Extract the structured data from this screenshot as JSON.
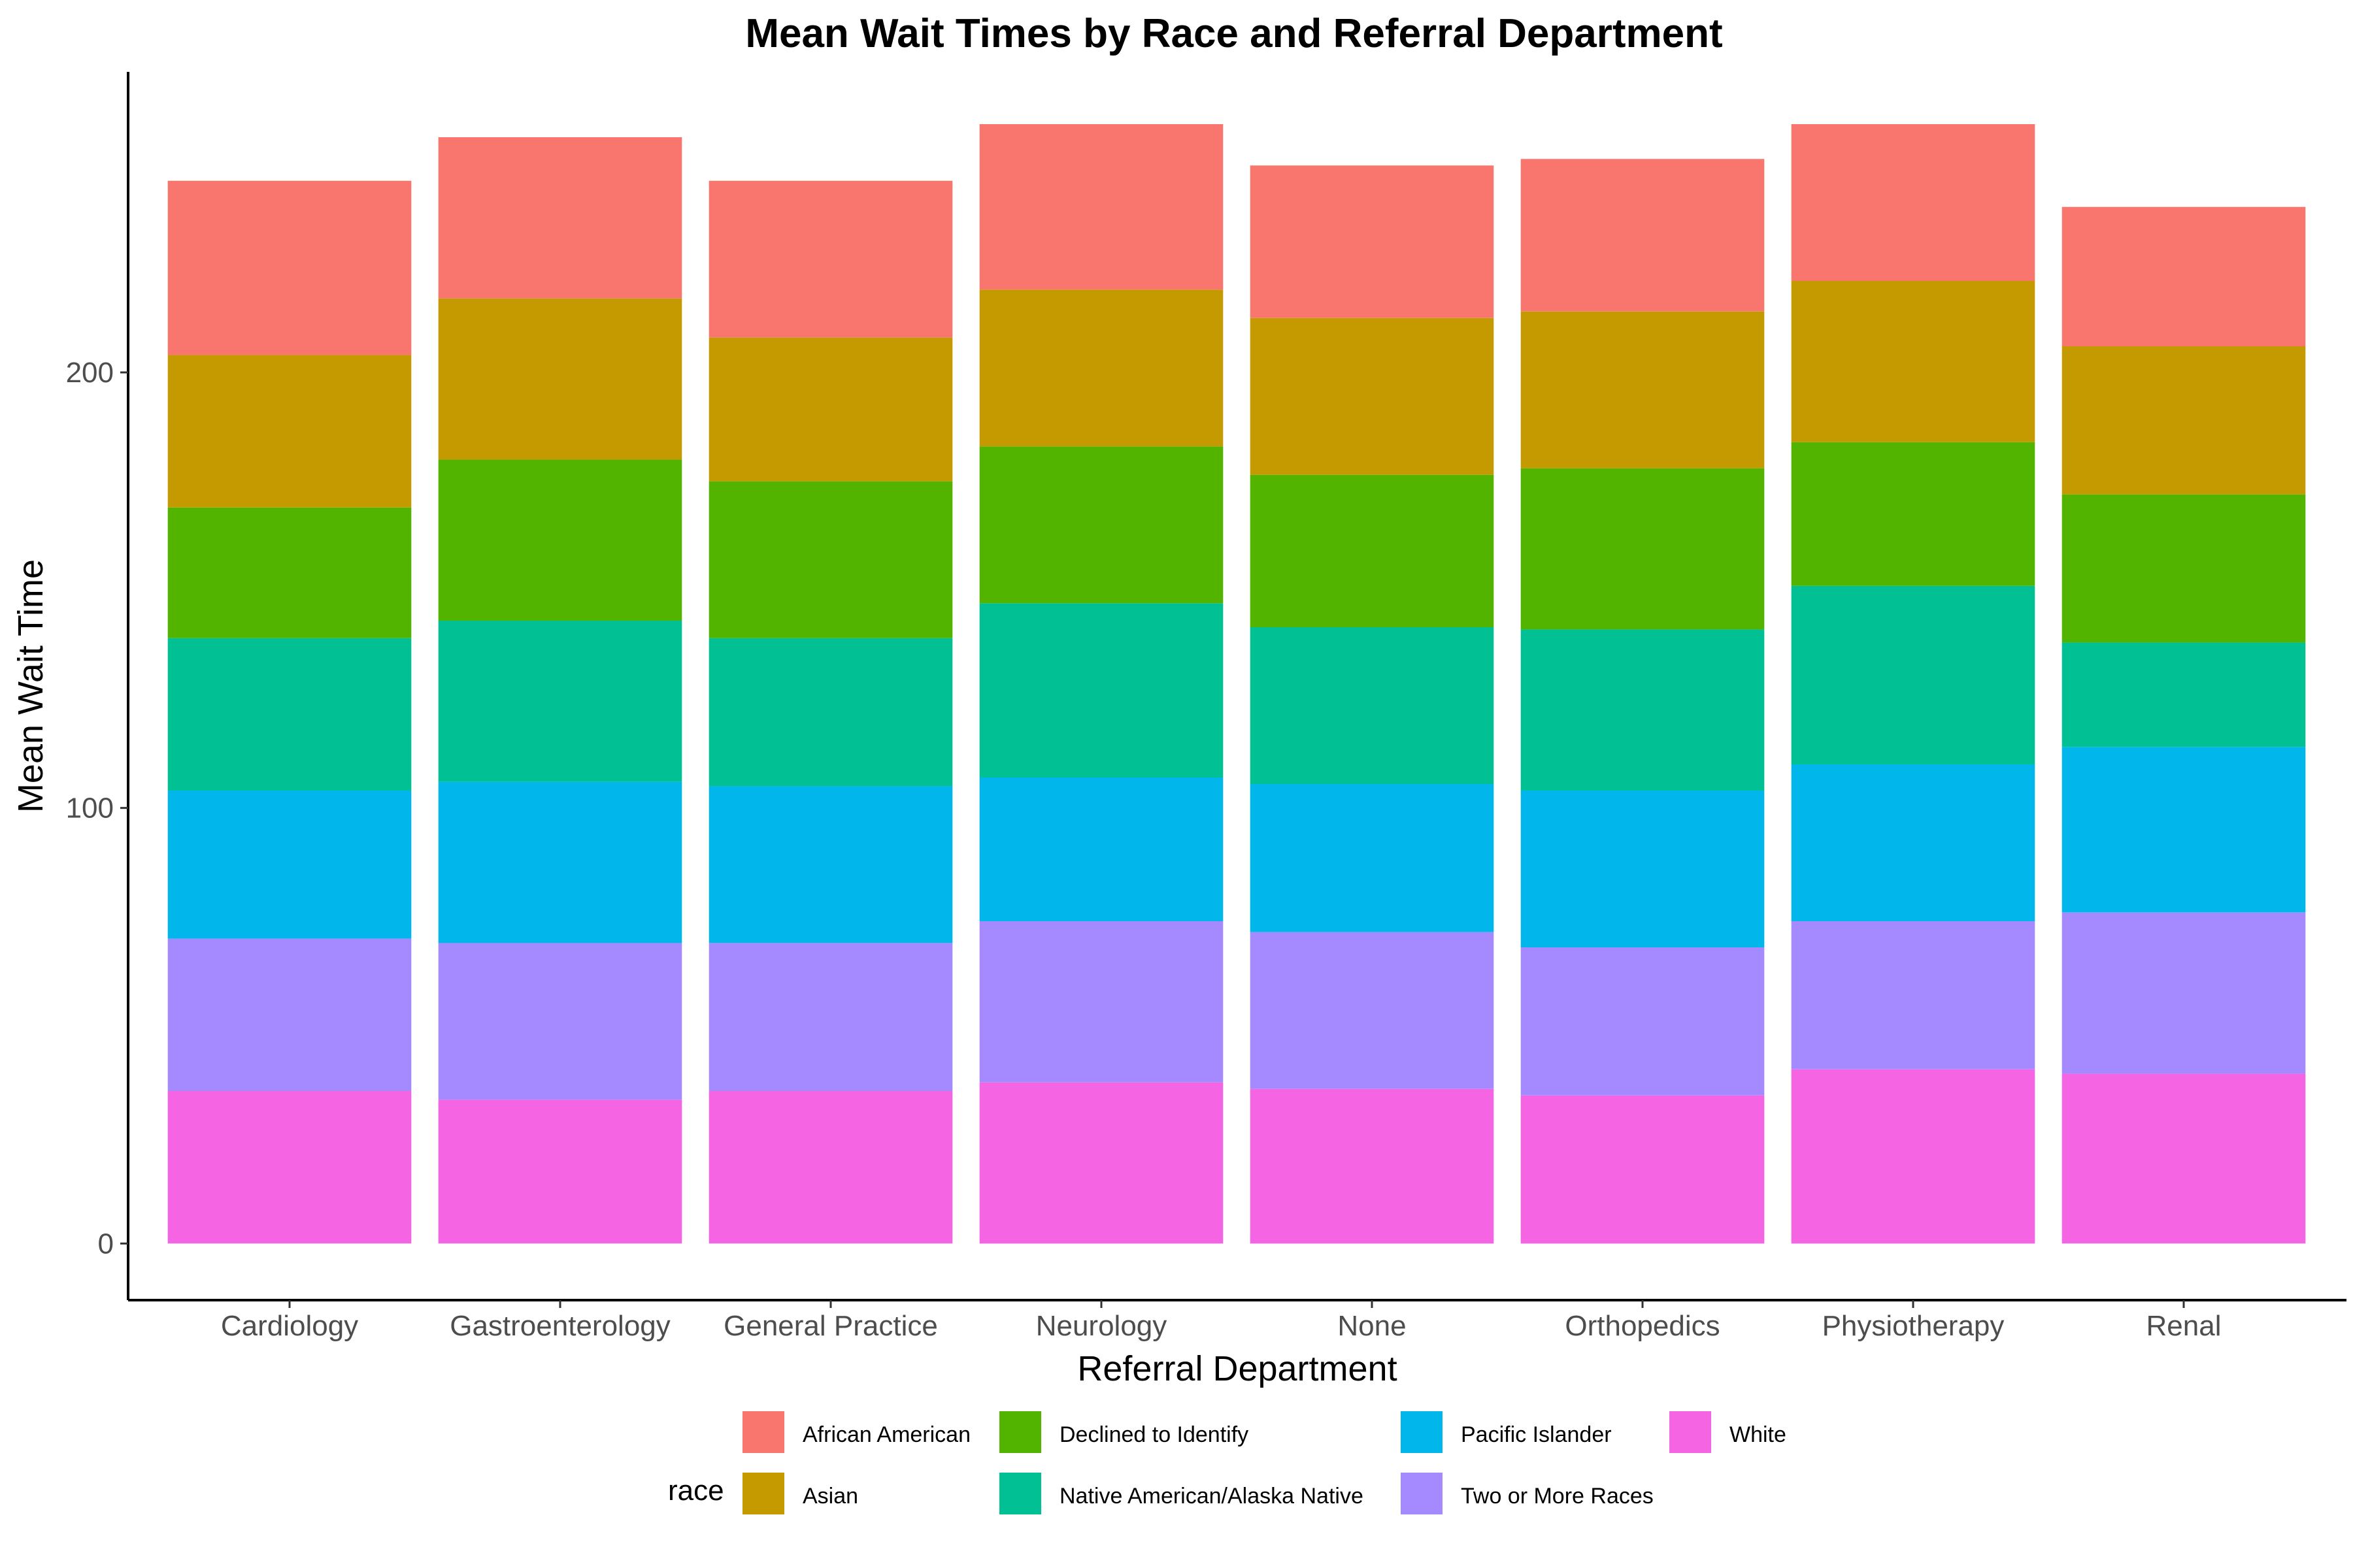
{
  "chart_data": {
    "type": "bar",
    "stacked": true,
    "title": "Mean Wait Times by Race and Referral Department",
    "xlabel": "Referral Department",
    "ylabel": "Mean Wait Time",
    "ylim": [
      -13,
      269
    ],
    "yticks": [
      0,
      100,
      200
    ],
    "grid": false,
    "legend_position": "bottom",
    "legend_title": "race",
    "categories": [
      "Cardiology",
      "Gastroenterology",
      "General Practice",
      "Neurology",
      "None",
      "Orthopedics",
      "Physiotherapy",
      "Renal"
    ],
    "series": [
      {
        "name": "White",
        "color": "#F564E3",
        "values": [
          35,
          33,
          35,
          37,
          35.5,
          34,
          40,
          39
        ]
      },
      {
        "name": "Two or More Races",
        "color": "#A58AFF",
        "values": [
          35,
          36,
          34,
          37,
          36,
          34,
          34,
          37
        ]
      },
      {
        "name": "Pacific Islander",
        "color": "#00B6EB",
        "values": [
          34,
          37,
          36,
          33,
          34,
          36,
          36,
          38
        ]
      },
      {
        "name": "Native American/Alaska Native",
        "color": "#00C094",
        "values": [
          35,
          37,
          34,
          40,
          36,
          37,
          41,
          24
        ]
      },
      {
        "name": "Declined to Identify",
        "color": "#53B400",
        "values": [
          30,
          37,
          36,
          36,
          35,
          37,
          33,
          34
        ]
      },
      {
        "name": "Asian",
        "color": "#C49A00",
        "values": [
          35,
          37,
          33,
          36,
          36,
          36,
          37,
          34
        ]
      },
      {
        "name": "African American",
        "color": "#F8766D",
        "values": [
          40,
          37,
          36,
          38,
          35,
          35,
          36,
          32
        ]
      }
    ],
    "legend_order": [
      "African American",
      "Asian",
      "Declined to Identify",
      "Native American/Alaska Native",
      "Pacific Islander",
      "Two or More Races",
      "White"
    ]
  }
}
